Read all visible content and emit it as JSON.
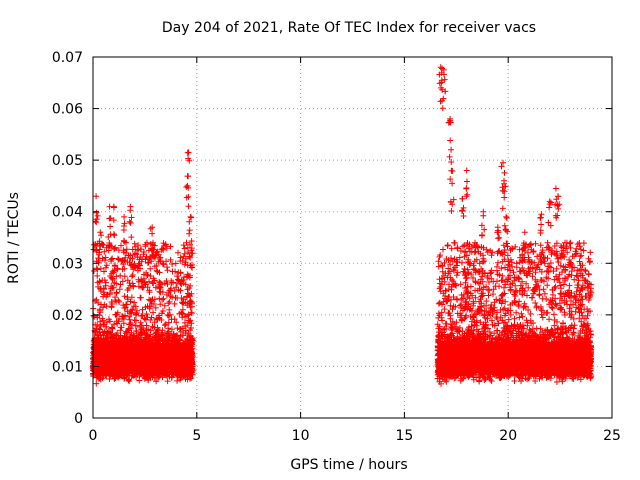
{
  "chart_data": {
    "type": "scatter",
    "title": "Day 204 of 2021, Rate Of TEC Index for receiver vacs",
    "xlabel": "GPS time / hours",
    "ylabel": "ROTI / TECUs",
    "xlim": [
      0,
      25
    ],
    "ylim": [
      0,
      0.07
    ],
    "x_ticks": [
      "0",
      "5",
      "10",
      "15",
      "20",
      "25"
    ],
    "y_ticks": [
      "0",
      "0.01",
      "0.02",
      "0.03",
      "0.04",
      "0.05",
      "0.06",
      "0.07"
    ],
    "grid": true,
    "marker": "+",
    "color": "#ff0000",
    "clusters": [
      {
        "x_range": [
          0,
          4.8
        ],
        "y_range": [
          0.003,
          0.025
        ],
        "density": "dense"
      },
      {
        "x_range": [
          16.6,
          24
        ],
        "y_range": [
          0.003,
          0.03
        ],
        "density": "dense"
      }
    ],
    "notable_points": [
      {
        "x": 0.15,
        "y": 0.043
      },
      {
        "x": 0.25,
        "y": 0.031
      },
      {
        "x": 0.35,
        "y": 0.036
      },
      {
        "x": 0.8,
        "y": 0.041
      },
      {
        "x": 1.0,
        "y": 0.041
      },
      {
        "x": 1.5,
        "y": 0.039
      },
      {
        "x": 1.8,
        "y": 0.041
      },
      {
        "x": 2.6,
        "y": 0.034
      },
      {
        "x": 2.85,
        "y": 0.037
      },
      {
        "x": 4.55,
        "y": 0.045
      },
      {
        "x": 4.6,
        "y": 0.0515
      },
      {
        "x": 4.7,
        "y": 0.039
      },
      {
        "x": 16.75,
        "y": 0.068
      },
      {
        "x": 16.8,
        "y": 0.0655
      },
      {
        "x": 16.9,
        "y": 0.0675
      },
      {
        "x": 17.2,
        "y": 0.058
      },
      {
        "x": 17.25,
        "y": 0.052
      },
      {
        "x": 17.3,
        "y": 0.0455
      },
      {
        "x": 17.8,
        "y": 0.0425
      },
      {
        "x": 18.0,
        "y": 0.048
      },
      {
        "x": 18.4,
        "y": 0.034
      },
      {
        "x": 18.8,
        "y": 0.04
      },
      {
        "x": 19.5,
        "y": 0.037
      },
      {
        "x": 19.75,
        "y": 0.0495
      },
      {
        "x": 19.8,
        "y": 0.046
      },
      {
        "x": 19.9,
        "y": 0.039
      },
      {
        "x": 20.8,
        "y": 0.036
      },
      {
        "x": 21.6,
        "y": 0.0395
      },
      {
        "x": 21.9,
        "y": 0.034
      },
      {
        "x": 22.0,
        "y": 0.042
      },
      {
        "x": 22.3,
        "y": 0.0445
      },
      {
        "x": 22.4,
        "y": 0.043
      },
      {
        "x": 23.0,
        "y": 0.034
      },
      {
        "x": 23.5,
        "y": 0.022
      },
      {
        "x": 23.9,
        "y": 0.026
      }
    ]
  }
}
